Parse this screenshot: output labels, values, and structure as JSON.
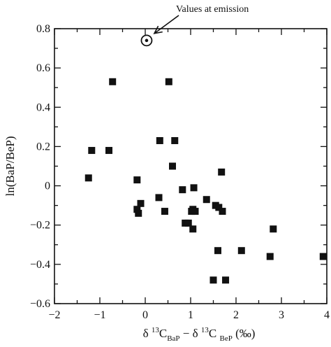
{
  "chart_data": {
    "type": "scatter",
    "title": "",
    "xlabel": {
      "parts": [
        {
          "t": "δ ",
          "style": "normal"
        },
        {
          "t": "13",
          "style": "sup"
        },
        {
          "t": "C",
          "style": "normal"
        },
        {
          "t": "BaP",
          "style": "sub"
        },
        {
          "t": " − δ ",
          "style": "normal"
        },
        {
          "t": "13",
          "style": "sup"
        },
        {
          "t": "C ",
          "style": "normal"
        },
        {
          "t": "BeP",
          "style": "sub"
        },
        {
          "t": "  (‰)",
          "style": "normal"
        }
      ]
    },
    "ylabel": "ln(BaP/BeP)",
    "xlim": [
      -2,
      4
    ],
    "ylim": [
      -0.6,
      0.8
    ],
    "xticks": [
      -2,
      -1,
      0,
      1,
      2,
      3,
      4
    ],
    "xtick_labels": [
      "−2",
      "−1",
      "0",
      "1",
      "2",
      "3",
      "4"
    ],
    "yticks": [
      -0.6,
      -0.4,
      -0.2,
      0,
      0.2,
      0.4,
      0.6,
      0.8
    ],
    "ytick_labels": [
      "−0.6",
      "−0.4",
      "−0.2",
      "0",
      "0.2",
      "0.4",
      "0.6",
      "0.8"
    ],
    "grid": false,
    "series": [
      {
        "marker": "filled-square",
        "points": [
          [
            -1.25,
            0.04
          ],
          [
            -1.18,
            0.18
          ],
          [
            -0.8,
            0.18
          ],
          [
            -0.72,
            0.53
          ],
          [
            -0.18,
            0.03
          ],
          [
            -0.18,
            -0.12
          ],
          [
            -0.15,
            -0.14
          ],
          [
            -0.1,
            -0.09
          ],
          [
            0.3,
            -0.06
          ],
          [
            0.32,
            0.23
          ],
          [
            0.43,
            -0.13
          ],
          [
            0.52,
            0.53
          ],
          [
            0.6,
            0.1
          ],
          [
            0.65,
            0.23
          ],
          [
            0.82,
            -0.02
          ],
          [
            0.88,
            -0.19
          ],
          [
            0.95,
            -0.19
          ],
          [
            1.02,
            -0.13
          ],
          [
            1.05,
            -0.22
          ],
          [
            1.05,
            -0.12
          ],
          [
            1.07,
            -0.01
          ],
          [
            1.1,
            -0.13
          ],
          [
            1.35,
            -0.07
          ],
          [
            1.55,
            -0.1
          ],
          [
            1.6,
            -0.33
          ],
          [
            1.62,
            -0.11
          ],
          [
            1.68,
            0.07
          ],
          [
            1.7,
            -0.13
          ],
          [
            1.5,
            -0.48
          ],
          [
            1.77,
            -0.48
          ],
          [
            2.12,
            -0.33
          ],
          [
            2.75,
            -0.36
          ],
          [
            2.82,
            -0.22
          ],
          [
            3.92,
            -0.36
          ]
        ]
      },
      {
        "marker": "circle-dot",
        "points": [
          [
            0.03,
            0.74
          ]
        ]
      }
    ],
    "annotations": [
      {
        "text": "Values at emission",
        "points_to": [
          0.03,
          0.74
        ]
      }
    ]
  }
}
